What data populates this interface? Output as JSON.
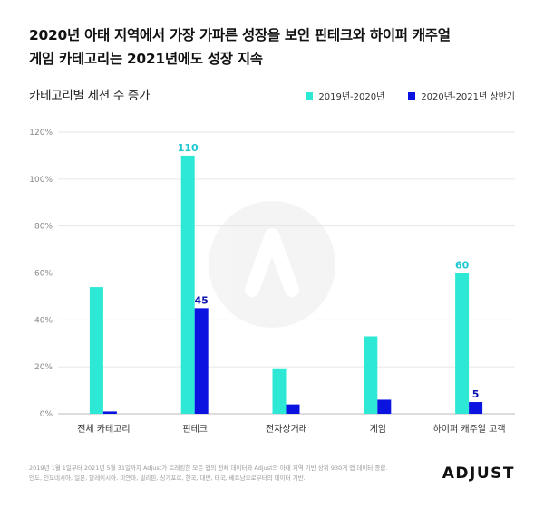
{
  "title_line1": "2020년 아태 지역에서 가장 가파른 성장을 보인 핀테크와 하이퍼 캐주얼",
  "title_line2": "게임 카테고리는 2021년에도 성장 지속",
  "footnote_line1": "2019년 1월 1일부터 2021년 5월 31일까지 Adjust가 트래킹한 모든 앱의 전체 데이터와 Adjust의 아태 지역 기반 상위 930개 앱 데이터 종합.",
  "footnote_line2": "인도, 인도네시아, 일본, 말레이시아, 미얀마, 필리핀, 싱가포르, 한국, 대만, 태국, 베트남으로부터의 데이터 기반.",
  "logo": "ADJUST",
  "colors": {
    "series1": "#2ee8d6",
    "series2": "#0b13e0",
    "label1": "#1fc7d6",
    "label2": "#0b13b0"
  },
  "chart_data": {
    "type": "bar",
    "title": "카테고리별 세션 수 증가",
    "categories": [
      "전체 카테고리",
      "핀테크",
      "전자상거래",
      "게임",
      "하이퍼 캐주얼 고객"
    ],
    "series": [
      {
        "name": "2019년-2020년",
        "values": [
          54,
          110,
          19,
          33,
          60
        ],
        "labels": [
          "",
          "110",
          "",
          "",
          "60"
        ]
      },
      {
        "name": "2020년-2021년 상반기",
        "values": [
          1,
          45,
          4,
          6,
          5
        ],
        "labels": [
          "",
          "45",
          "",
          "",
          "5"
        ]
      }
    ],
    "ylim": [
      0,
      120
    ],
    "yticks": [
      0,
      20,
      40,
      60,
      80,
      100,
      120
    ],
    "ytick_labels": [
      "0%",
      "20%",
      "40%",
      "60%",
      "80%",
      "100%",
      "120%"
    ],
    "grid": true,
    "legend": "top-right"
  }
}
